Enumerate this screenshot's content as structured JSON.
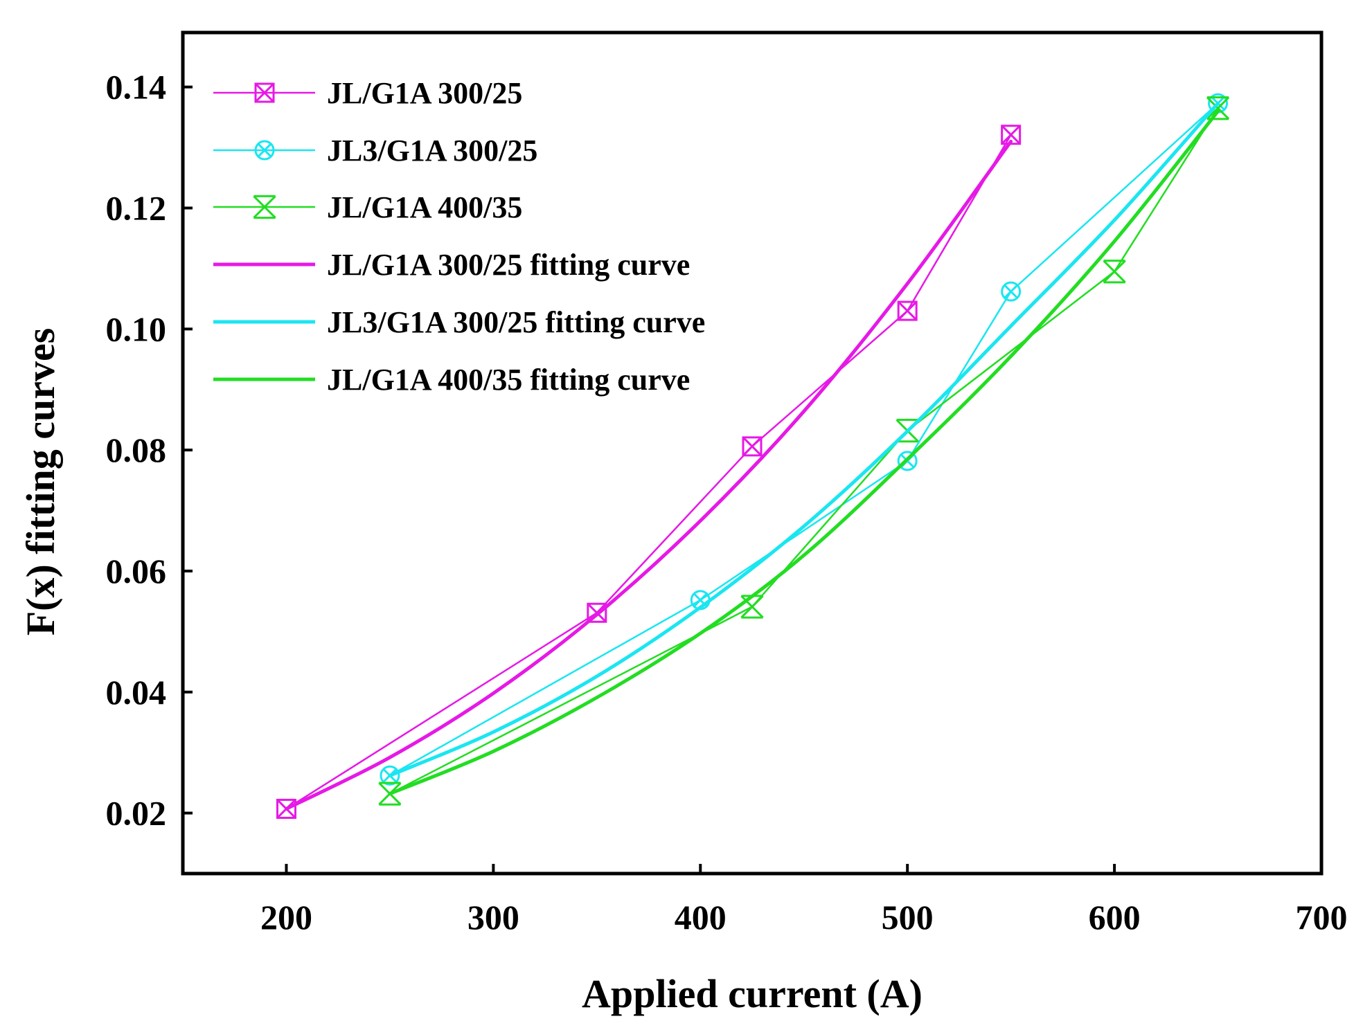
{
  "chart_data": {
    "type": "line",
    "title": "",
    "xlabel": "Applied current (A)",
    "ylabel": "F(x) fitting curves",
    "xlim": [
      150,
      700
    ],
    "ylim": [
      0.01,
      0.149
    ],
    "xticks": [
      200,
      300,
      400,
      500,
      600,
      700
    ],
    "xtick_labels": [
      "200",
      "300",
      "400",
      "500",
      "600",
      "700"
    ],
    "yticks": [
      0.02,
      0.04,
      0.06,
      0.08,
      0.1,
      0.12,
      0.14
    ],
    "ytick_labels": [
      "0.02",
      "0.04",
      "0.06",
      "0.08",
      "0.10",
      "0.12",
      "0.14"
    ],
    "grid": false,
    "legend_position": "top-left",
    "series": [
      {
        "name": "JL/G1A 300/25",
        "kind": "data",
        "marker": "boxed-x",
        "color": "#e619e6",
        "x": [
          200,
          350,
          425,
          500,
          550
        ],
        "y": [
          0.0207,
          0.0531,
          0.0806,
          0.103,
          0.1321
        ]
      },
      {
        "name": "JL3/G1A 300/25",
        "kind": "data",
        "marker": "circle-x",
        "color": "#1ae6f0",
        "x": [
          250,
          400,
          500,
          550,
          650
        ],
        "y": [
          0.0262,
          0.0552,
          0.0782,
          0.1062,
          0.1373
        ]
      },
      {
        "name": "JL/G1A 400/35",
        "kind": "data",
        "marker": "hourglass-x",
        "color": "#22dd22",
        "x": [
          250,
          425,
          500,
          600,
          650
        ],
        "y": [
          0.0232,
          0.0541,
          0.0832,
          0.1095,
          0.1365
        ]
      },
      {
        "name": "JL/G1A 300/25 fitting curve",
        "kind": "fit",
        "color": "#e619e6",
        "x": [
          200,
          250,
          300,
          350,
          400,
          450,
          500,
          550
        ],
        "y": [
          0.0207,
          0.0292,
          0.0398,
          0.0528,
          0.0683,
          0.0864,
          0.1075,
          0.131
        ]
      },
      {
        "name": "JL3/G1A 300/25 fitting curve",
        "kind": "fit",
        "color": "#1ae6f0",
        "x": [
          250,
          300,
          350,
          400,
          450,
          500,
          550,
          600,
          650
        ],
        "y": [
          0.0262,
          0.0334,
          0.0426,
          0.054,
          0.0674,
          0.0831,
          0.1005,
          0.118,
          0.1373
        ]
      },
      {
        "name": "JL/G1A 400/35 fitting curve",
        "kind": "fit",
        "color": "#22dd22",
        "x": [
          250,
          300,
          350,
          400,
          450,
          500,
          550,
          600,
          650
        ],
        "y": [
          0.0232,
          0.0302,
          0.0391,
          0.0497,
          0.0626,
          0.0785,
          0.0955,
          0.1145,
          0.136
        ]
      }
    ]
  }
}
